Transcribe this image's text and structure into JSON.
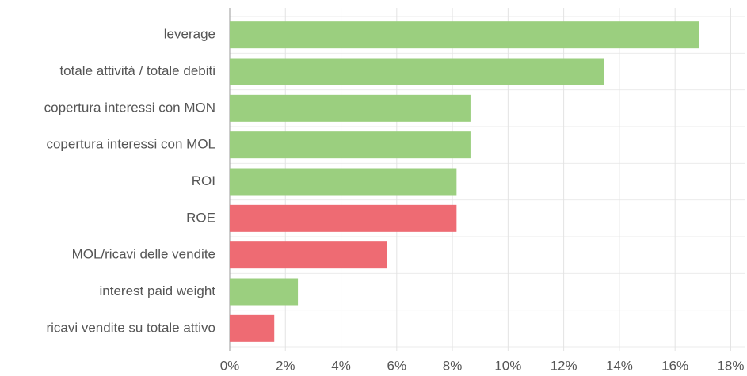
{
  "chart_data": {
    "type": "hbar",
    "categories": [
      "leverage",
      "totale attività / totale debiti",
      "copertura interessi con MON",
      "copertura interessi con MOL",
      "ROI",
      "ROE",
      "MOL/ricavi delle vendite",
      "interest paid weight",
      "ricavi vendite su totale attivo"
    ],
    "values": [
      16.85,
      13.45,
      8.65,
      8.65,
      8.15,
      8.15,
      5.65,
      2.45,
      1.6
    ],
    "colors": [
      "#9bcf7f",
      "#9bcf7f",
      "#9bcf7f",
      "#9bcf7f",
      "#9bcf7f",
      "#ee6b73",
      "#ee6b73",
      "#9bcf7f",
      "#ee6b73"
    ],
    "xlim": [
      0,
      18.5
    ],
    "xticks": [
      {
        "value": 0,
        "label": "0%"
      },
      {
        "value": 2,
        "label": "2%"
      },
      {
        "value": 4,
        "label": "4%"
      },
      {
        "value": 6,
        "label": "6%"
      },
      {
        "value": 8,
        "label": "8%"
      },
      {
        "value": 10,
        "label": "10%"
      },
      {
        "value": 12,
        "label": "12%"
      },
      {
        "value": 14,
        "label": "14%"
      },
      {
        "value": 16,
        "label": "16%"
      },
      {
        "value": 18,
        "label": "18%"
      }
    ],
    "grid": true
  }
}
